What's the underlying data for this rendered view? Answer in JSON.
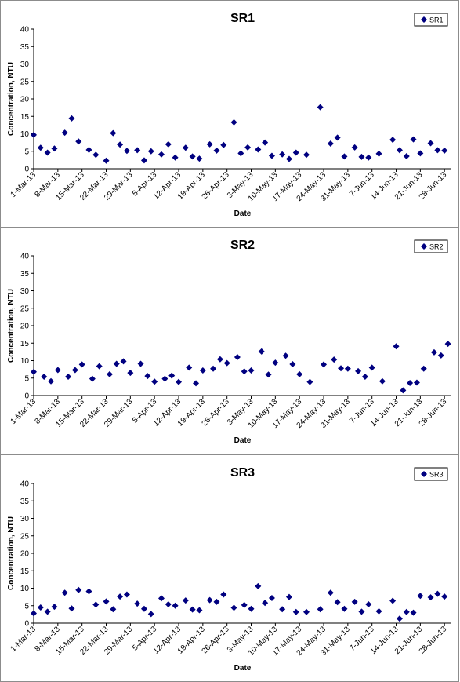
{
  "chart_data": [
    {
      "type": "scatter",
      "title": "SR1",
      "xlabel": "Date",
      "ylabel": "Concentration, NTU",
      "legend": "top-right",
      "series": [
        {
          "name": "SR1",
          "color": "#000080",
          "points": [
            [
              "1-Mar-13",
              9.7
            ],
            [
              "3-Mar-13",
              6.0
            ],
            [
              "5-Mar-13",
              4.6
            ],
            [
              "7-Mar-13",
              5.8
            ],
            [
              "10-Mar-13",
              10.3
            ],
            [
              "12-Mar-13",
              14.4
            ],
            [
              "14-Mar-13",
              7.8
            ],
            [
              "17-Mar-13",
              5.4
            ],
            [
              "19-Mar-13",
              4.0
            ],
            [
              "22-Mar-13",
              2.3
            ],
            [
              "24-Mar-13",
              10.2
            ],
            [
              "26-Mar-13",
              6.9
            ],
            [
              "28-Mar-13",
              5.1
            ],
            [
              "31-Mar-13",
              5.3
            ],
            [
              "2-Apr-13",
              2.4
            ],
            [
              "4-Apr-13",
              5.0
            ],
            [
              "7-Apr-13",
              4.1
            ],
            [
              "9-Apr-13",
              7.0
            ],
            [
              "11-Apr-13",
              3.2
            ],
            [
              "14-Apr-13",
              6.0
            ],
            [
              "16-Apr-13",
              3.5
            ],
            [
              "18-Apr-13",
              2.9
            ],
            [
              "21-Apr-13",
              7.0
            ],
            [
              "23-Apr-13",
              5.2
            ],
            [
              "25-Apr-13",
              6.8
            ],
            [
              "28-Apr-13",
              13.3
            ],
            [
              "30-Apr-13",
              4.4
            ],
            [
              "2-May-13",
              6.1
            ],
            [
              "5-May-13",
              5.5
            ],
            [
              "7-May-13",
              7.5
            ],
            [
              "9-May-13",
              3.7
            ],
            [
              "12-May-13",
              4.1
            ],
            [
              "14-May-13",
              2.8
            ],
            [
              "16-May-13",
              4.6
            ],
            [
              "19-May-13",
              4.0
            ],
            [
              "23-May-13",
              17.6
            ],
            [
              "26-May-13",
              7.2
            ],
            [
              "28-May-13",
              8.9
            ],
            [
              "30-May-13",
              3.5
            ],
            [
              "2-Jun-13",
              6.1
            ],
            [
              "4-Jun-13",
              3.4
            ],
            [
              "6-Jun-13",
              3.2
            ],
            [
              "9-Jun-13",
              4.3
            ],
            [
              "13-Jun-13",
              8.3
            ],
            [
              "15-Jun-13",
              5.3
            ],
            [
              "17-Jun-13",
              3.6
            ],
            [
              "19-Jun-13",
              8.4
            ],
            [
              "21-Jun-13",
              4.4
            ],
            [
              "24-Jun-13",
              7.3
            ],
            [
              "26-Jun-13",
              5.3
            ],
            [
              "28-Jun-13",
              5.2
            ]
          ]
        }
      ]
    },
    {
      "type": "scatter",
      "title": "SR2",
      "xlabel": "Date",
      "ylabel": "Concentration, NTU",
      "legend": "top-right",
      "series": [
        {
          "name": "SR2",
          "color": "#000080",
          "points": [
            [
              "1-Mar-13",
              6.8
            ],
            [
              "4-Mar-13",
              5.4
            ],
            [
              "6-Mar-13",
              4.1
            ],
            [
              "8-Mar-13",
              7.3
            ],
            [
              "11-Mar-13",
              5.4
            ],
            [
              "13-Mar-13",
              7.3
            ],
            [
              "15-Mar-13",
              8.9
            ],
            [
              "18-Mar-13",
              4.8
            ],
            [
              "20-Mar-13",
              8.4
            ],
            [
              "23-Mar-13",
              6.1
            ],
            [
              "25-Mar-13",
              9.1
            ],
            [
              "27-Mar-13",
              9.8
            ],
            [
              "29-Mar-13",
              6.5
            ],
            [
              "1-Apr-13",
              9.1
            ],
            [
              "3-Apr-13",
              5.6
            ],
            [
              "5-Apr-13",
              4.0
            ],
            [
              "8-Apr-13",
              4.8
            ],
            [
              "10-Apr-13",
              5.7
            ],
            [
              "12-Apr-13",
              3.9
            ],
            [
              "15-Apr-13",
              8.0
            ],
            [
              "17-Apr-13",
              3.5
            ],
            [
              "19-Apr-13",
              7.2
            ],
            [
              "22-Apr-13",
              7.7
            ],
            [
              "24-Apr-13",
              10.4
            ],
            [
              "26-Apr-13",
              9.3
            ],
            [
              "29-Apr-13",
              11.0
            ],
            [
              "1-May-13",
              6.9
            ],
            [
              "3-May-13",
              7.2
            ],
            [
              "6-May-13",
              12.6
            ],
            [
              "8-May-13",
              6.0
            ],
            [
              "10-May-13",
              9.4
            ],
            [
              "13-May-13",
              11.4
            ],
            [
              "15-May-13",
              9.0
            ],
            [
              "17-May-13",
              6.1
            ],
            [
              "20-May-13",
              3.9
            ],
            [
              "24-May-13",
              8.9
            ],
            [
              "27-May-13",
              10.3
            ],
            [
              "29-May-13",
              7.8
            ],
            [
              "31-May-13",
              7.7
            ],
            [
              "3-Jun-13",
              7.0
            ],
            [
              "5-Jun-13",
              5.4
            ],
            [
              "7-Jun-13",
              8.0
            ],
            [
              "10-Jun-13",
              4.1
            ],
            [
              "14-Jun-13",
              14.1
            ],
            [
              "16-Jun-13",
              1.5
            ],
            [
              "18-Jun-13",
              3.6
            ],
            [
              "20-Jun-13",
              3.7
            ],
            [
              "22-Jun-13",
              7.7
            ],
            [
              "25-Jun-13",
              12.4
            ],
            [
              "27-Jun-13",
              11.5
            ],
            [
              "29-Jun-13",
              14.8
            ]
          ]
        }
      ]
    },
    {
      "type": "scatter",
      "title": "SR3",
      "xlabel": "Date",
      "ylabel": "Concentration, NTU",
      "legend": "top-right",
      "series": [
        {
          "name": "SR3",
          "color": "#000080",
          "points": [
            [
              "1-Mar-13",
              2.8
            ],
            [
              "3-Mar-13",
              4.5
            ],
            [
              "5-Mar-13",
              3.3
            ],
            [
              "7-Mar-13",
              4.7
            ],
            [
              "10-Mar-13",
              8.7
            ],
            [
              "12-Mar-13",
              4.2
            ],
            [
              "14-Mar-13",
              9.5
            ],
            [
              "17-Mar-13",
              9.1
            ],
            [
              "19-Mar-13",
              5.3
            ],
            [
              "22-Mar-13",
              6.2
            ],
            [
              "24-Mar-13",
              4.0
            ],
            [
              "26-Mar-13",
              7.6
            ],
            [
              "28-Mar-13",
              8.2
            ],
            [
              "31-Mar-13",
              5.6
            ],
            [
              "2-Apr-13",
              4.1
            ],
            [
              "4-Apr-13",
              2.6
            ],
            [
              "7-Apr-13",
              7.1
            ],
            [
              "9-Apr-13",
              5.4
            ],
            [
              "11-Apr-13",
              5.0
            ],
            [
              "14-Apr-13",
              6.5
            ],
            [
              "16-Apr-13",
              3.9
            ],
            [
              "18-Apr-13",
              3.7
            ],
            [
              "21-Apr-13",
              6.6
            ],
            [
              "23-Apr-13",
              6.1
            ],
            [
              "25-Apr-13",
              8.2
            ],
            [
              "28-Apr-13",
              4.4
            ],
            [
              "1-May-13",
              5.2
            ],
            [
              "3-May-13",
              4.1
            ],
            [
              "5-May-13",
              10.6
            ],
            [
              "7-May-13",
              5.8
            ],
            [
              "9-May-13",
              7.2
            ],
            [
              "12-May-13",
              4.0
            ],
            [
              "14-May-13",
              7.5
            ],
            [
              "16-May-13",
              3.2
            ],
            [
              "19-May-13",
              3.2
            ],
            [
              "23-May-13",
              4.0
            ],
            [
              "26-May-13",
              8.7
            ],
            [
              "28-May-13",
              6.0
            ],
            [
              "30-May-13",
              4.1
            ],
            [
              "2-Jun-13",
              6.1
            ],
            [
              "4-Jun-13",
              3.3
            ],
            [
              "6-Jun-13",
              5.4
            ],
            [
              "9-Jun-13",
              3.4
            ],
            [
              "13-Jun-13",
              6.4
            ],
            [
              "15-Jun-13",
              1.3
            ],
            [
              "17-Jun-13",
              3.2
            ],
            [
              "19-Jun-13",
              3.0
            ],
            [
              "21-Jun-13",
              7.8
            ],
            [
              "24-Jun-13",
              7.4
            ],
            [
              "26-Jun-13",
              8.4
            ],
            [
              "28-Jun-13",
              7.6
            ]
          ]
        }
      ]
    }
  ],
  "axes": {
    "y_ticks": [
      "0",
      "5",
      "10",
      "15",
      "20",
      "25",
      "30",
      "35",
      "40"
    ],
    "ylim": [
      0,
      40
    ],
    "x_ticks": [
      "1-Mar-13",
      "8-Mar-13",
      "15-Mar-13",
      "22-Mar-13",
      "29-Mar-13",
      "5-Apr-13",
      "12-Apr-13",
      "19-Apr-13",
      "26-Apr-13",
      "3-May-13",
      "10-May-13",
      "17-May-13",
      "24-May-13",
      "31-May-13",
      "7-Jun-13",
      "14-Jun-13",
      "21-Jun-13",
      "28-Jun-13"
    ],
    "xlim": [
      "1-Mar-13",
      "30-Jun-13"
    ],
    "grid": false
  }
}
